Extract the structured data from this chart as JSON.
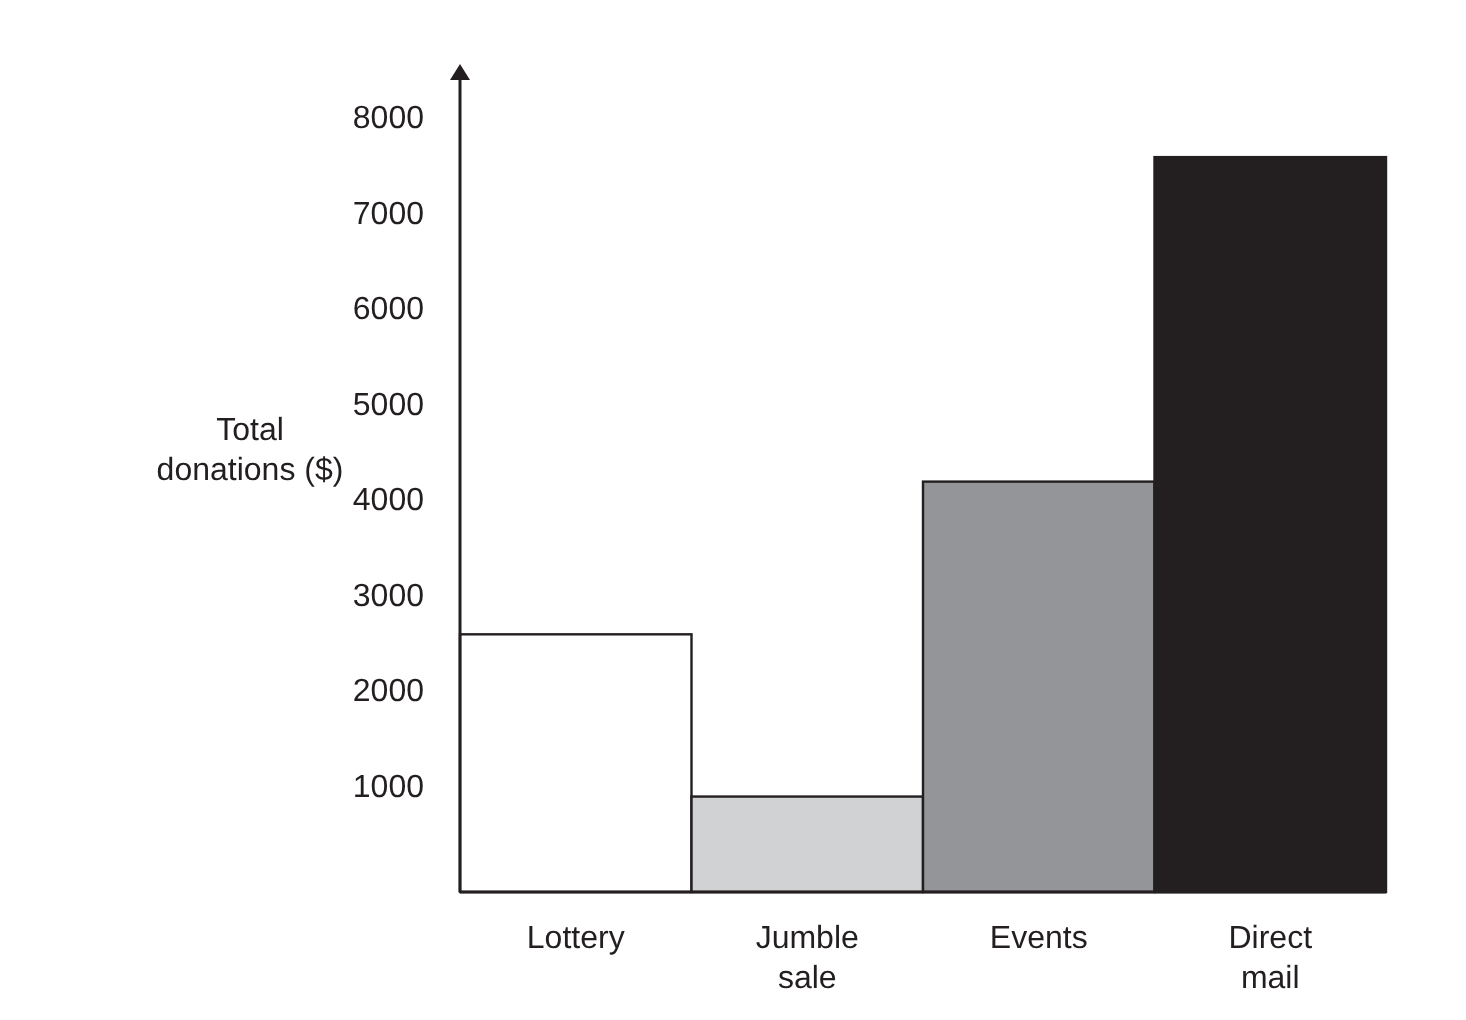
{
  "chart_data": {
    "type": "bar",
    "ylabel": "Total donations ($)",
    "categories": [
      "Lottery",
      "Jumble sale",
      "Events",
      "Direct mail"
    ],
    "values": [
      2700,
      1000,
      4300,
      7700
    ],
    "colors": [
      "#ffffff",
      "#d1d2d4",
      "#939598",
      "#231f20"
    ],
    "ylim": [
      0,
      8550
    ],
    "yticks": [
      1000,
      2000,
      3000,
      4000,
      5000,
      6000,
      7000,
      8000
    ],
    "grid": false
  }
}
